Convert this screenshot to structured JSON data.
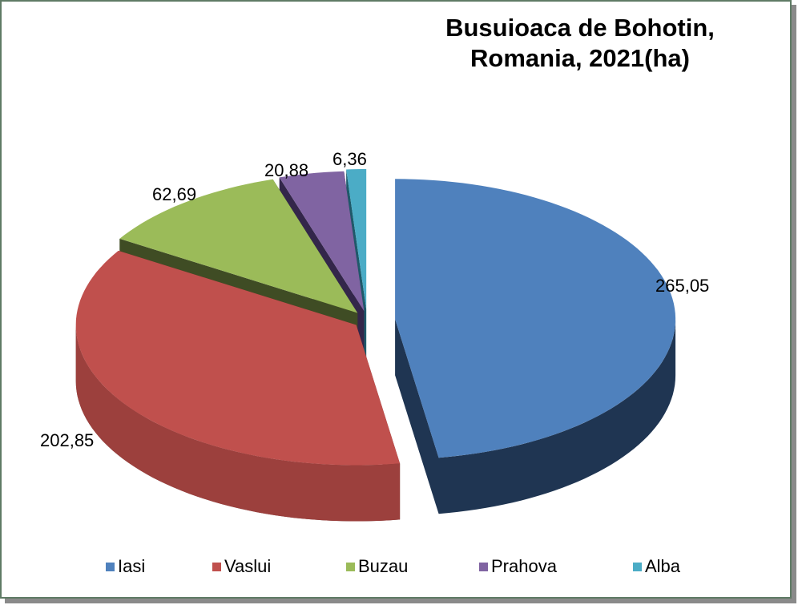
{
  "chart_data": {
    "type": "pie",
    "variant": "3d-exploded",
    "title": "Busuioaca de Bohotin, Romania, 2021(ha)",
    "title_lines": [
      "Busuioaca de Bohotin,",
      "Romania, 2021(ha)"
    ],
    "categories": [
      "Iasi",
      "Vaslui",
      "Buzau",
      "Prahova",
      "Alba"
    ],
    "values": [
      265.05,
      202.85,
      62.69,
      20.88,
      6.36
    ],
    "value_labels": [
      "265,05",
      "202,85",
      "62,69",
      "20,88",
      "6,36"
    ],
    "colors": [
      "#4f81bd",
      "#c0504d",
      "#9bbb59",
      "#8064a2",
      "#4bacc6"
    ],
    "side_colors": [
      "#1f3552",
      "#6e2a28",
      "#3f4c24",
      "#33264a",
      "#1e5a6a"
    ],
    "unit": "ha",
    "legend_position": "bottom"
  },
  "legend": {
    "items": [
      {
        "label": "Iasi",
        "color": "#4f81bd"
      },
      {
        "label": "Vaslui",
        "color": "#c0504d"
      },
      {
        "label": "Buzau",
        "color": "#9bbb59"
      },
      {
        "label": "Prahova",
        "color": "#8064a2"
      },
      {
        "label": "Alba",
        "color": "#4bacc6"
      }
    ]
  }
}
